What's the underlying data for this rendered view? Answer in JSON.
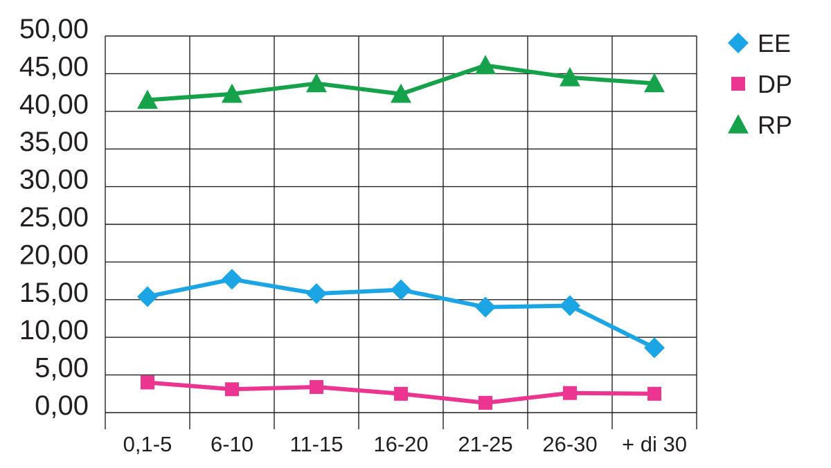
{
  "chart_data": {
    "type": "line",
    "categories": [
      "0,1-5",
      "6-10",
      "11-15",
      "16-20",
      "21-25",
      "26-30",
      "+ di 30"
    ],
    "ylim": [
      0,
      50
    ],
    "y_ticks": [
      "0,00",
      "5,00",
      "10,00",
      "15,00",
      "20,00",
      "25,00",
      "30,00",
      "35,00",
      "40,00",
      "45,00",
      "50,00"
    ],
    "y_tick_values": [
      0,
      5,
      10,
      15,
      20,
      25,
      30,
      35,
      40,
      45,
      50
    ],
    "grid": true,
    "legend_position": "right",
    "series": [
      {
        "name": "EE",
        "color": "#1ba5e4",
        "marker": "diamond",
        "values": [
          15.4,
          17.7,
          15.8,
          16.3,
          14.0,
          14.2,
          8.6
        ]
      },
      {
        "name": "DP",
        "color": "#ec3591",
        "marker": "square",
        "values": [
          4.0,
          3.1,
          3.4,
          2.5,
          1.3,
          2.6,
          2.5
        ]
      },
      {
        "name": "RP",
        "color": "#15a24a",
        "marker": "triangle",
        "values": [
          41.5,
          42.3,
          43.7,
          42.3,
          46.1,
          44.5,
          43.7
        ]
      }
    ]
  }
}
